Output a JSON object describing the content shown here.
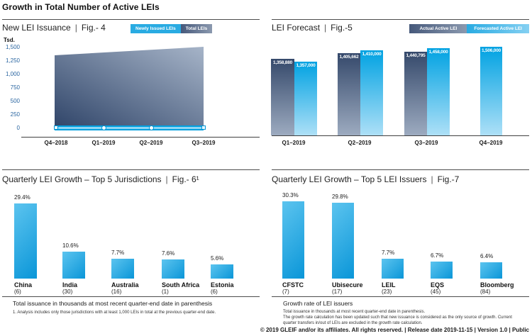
{
  "ui": {
    "page_title": "Growth in Total Number of Active LEIs",
    "separator": "|",
    "copyright": "© 2019 GLEIF and/or its affiliates. All rights reserved.  |  Release date 2019-11-15  |  Version 1.0  |  Public"
  },
  "colors": {
    "accent_cyan": "#29abe2",
    "dark_navy": "#35496b",
    "steel_light": "#9dabc0",
    "axis_tick_blue": "#2a65a0",
    "bar_cyan_top": "#5cc4ef",
    "bar_cyan_bottom": "#0a96d8"
  },
  "chart_data": [
    {
      "id": "fig4",
      "type": "area",
      "title": "New LEI Issuance",
      "figure": "Fig.- 4",
      "unit_label": "Tsd.",
      "legend": [
        "Newly Issued LEIs",
        "Total LEIs"
      ],
      "categories": [
        "Q4–2018",
        "Q1–2019",
        "Q2–2019",
        "Q3–2019"
      ],
      "series": [
        {
          "name": "Newly Issued LEIs",
          "values_tsd_approx": [
            40,
            40,
            40,
            40
          ]
        },
        {
          "name": "Total LEIs",
          "values_tsd_approx": [
            1340,
            1395,
            1450,
            1500
          ]
        }
      ],
      "ylim": [
        0,
        1500
      ],
      "yticks": [
        "1,500",
        "1,250",
        "1,000",
        "750",
        "500",
        "250",
        "0"
      ]
    },
    {
      "id": "fig5",
      "type": "bar",
      "title": "LEI Forecast",
      "figure": "Fig.-5",
      "legend": [
        "Actual Active LEI",
        "Forecasted Active LEI"
      ],
      "categories": [
        "Q1–2019",
        "Q2–2019",
        "Q3–2019",
        "Q4–2019"
      ],
      "series": [
        {
          "name": "Actual Active LEI",
          "values": [
            1358880,
            1405662,
            1440795,
            null
          ]
        },
        {
          "name": "Forecasted Active LEI",
          "values": [
            1357000,
            1410000,
            1458000,
            1506000
          ]
        }
      ],
      "labels": [
        [
          "1,358,880",
          "1,357,000"
        ],
        [
          "1,405,662",
          "1,410,000"
        ],
        [
          "1,440,795",
          "1,458,000"
        ],
        [
          null,
          "1,506,000"
        ]
      ]
    },
    {
      "id": "fig6",
      "type": "bar",
      "title": "Quarterly LEI Growth – Top 5 Jurisdictions",
      "figure": "Fig.- 6¹",
      "categories": [
        "China",
        "India",
        "Australia",
        "South Africa",
        "Estonia"
      ],
      "counts": [
        "(6)",
        "(30)",
        "(16)",
        "(1)",
        "(6)"
      ],
      "values": [
        29.4,
        10.6,
        7.7,
        7.6,
        5.6
      ],
      "value_labels": [
        "29.4%",
        "10.6%",
        "7.7%",
        "7.6%",
        "5.6%"
      ],
      "footnote_main": "Total issuance in thousands at most recent quarter-end date in parenthesis",
      "footnote_small": "1. Analysis includes only those jurisdictions with at least 1,000 LEIs in total at the previous quarter-end date."
    },
    {
      "id": "fig7",
      "type": "bar",
      "title": "Quarterly LEI Growth – Top 5 LEI Issuers",
      "figure": "Fig.-7",
      "categories": [
        "CFSTC",
        "Ubisecure",
        "LEIL",
        "EQS",
        "Bloomberg"
      ],
      "counts": [
        "(7)",
        "(17)",
        "(23)",
        "(45)",
        "(84)"
      ],
      "values": [
        30.3,
        29.8,
        7.7,
        6.7,
        6.4
      ],
      "value_labels": [
        "30.3%",
        "29.8%",
        "7.7%",
        "6.7%",
        "6.4%"
      ],
      "footnote_heading": "Growth rate of LEI issuers",
      "footnote_lines": [
        "Total issuance in thousands at most recent quarter-end date in parenthesis.",
        "The growth rate calculation has been updated such that new issuance is considered as the only source of growth. Current quarter transfers in/out of LEIs are excluded in the growth rate calculation."
      ]
    }
  ]
}
